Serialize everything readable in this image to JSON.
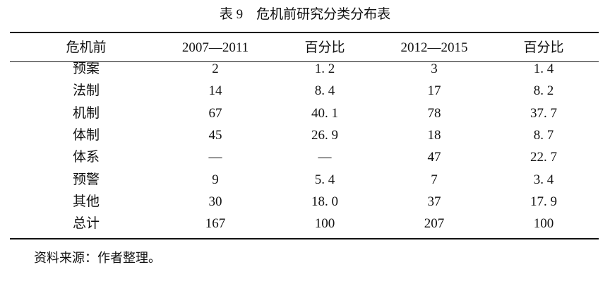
{
  "title": "表 9　危机前研究分类分布表",
  "table": {
    "header": [
      "危机前",
      "2007—2011",
      "百分比",
      "2012—2015",
      "百分比"
    ],
    "rows": [
      [
        "预案",
        "2",
        "1. 2",
        "3",
        "1. 4"
      ],
      [
        "法制",
        "14",
        "8. 4",
        "17",
        "8. 2"
      ],
      [
        "机制",
        "67",
        "40. 1",
        "78",
        "37. 7"
      ],
      [
        "体制",
        "45",
        "26. 9",
        "18",
        "8. 7"
      ],
      [
        "体系",
        "—",
        "—",
        "47",
        "22. 7"
      ],
      [
        "预警",
        "9",
        "5. 4",
        "7",
        "3. 4"
      ],
      [
        "其他",
        "30",
        "18. 0",
        "37",
        "17. 9"
      ],
      [
        "总计",
        "167",
        "100",
        "207",
        "100"
      ]
    ]
  },
  "note": "资料来源：作者整理。"
}
